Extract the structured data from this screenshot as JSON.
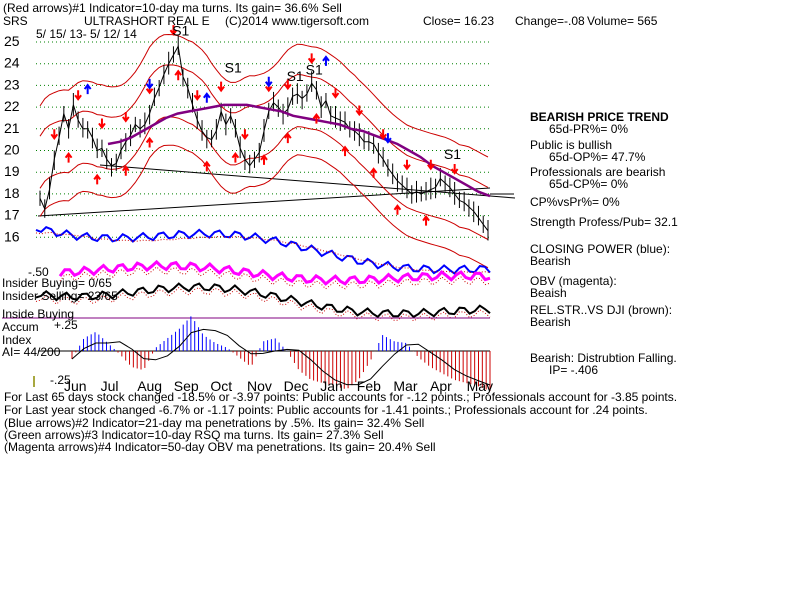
{
  "header": {
    "line1": "(Red arrows)#1 Indicator=10-day ma turns. Its gain= 36.6% Sell",
    "ticker": "SRS",
    "name": "ULTRASHORT REAL E",
    "copyright": "(C)2014 www.tigersoft.com",
    "close": "Close=  16.23",
    "change": "Change=-.08",
    "volume": "Volume= 565",
    "date_range": "5/ 15/ 13-  5/ 12/ 14"
  },
  "chart_data": {
    "type": "line",
    "ylim": [
      15.5,
      25.4
    ],
    "yticks": [
      "25",
      "24",
      "23",
      "22",
      "21",
      "20",
      "19",
      "18",
      "17",
      "16"
    ],
    "months": [
      "Jun",
      "Jul",
      "Aug",
      "Sep",
      "Oct",
      "Nov",
      "Dec",
      "Jan",
      "Feb",
      "Mar",
      "Apr",
      "May"
    ],
    "series": [
      {
        "values": [
          17.8,
          17.3,
          18.2,
          19.6,
          20.6,
          21.7,
          21.0,
          22.1,
          21.4,
          21.0,
          21.0,
          20.6,
          20.0,
          20.1,
          19.6,
          19.3,
          19.4,
          20.0,
          20.4,
          20.7,
          21.2,
          21.0,
          21.2,
          21.7,
          22.4,
          22.9,
          23.5,
          24.0,
          24.4,
          24.8,
          23.4,
          22.9,
          22.1,
          21.4,
          20.9,
          20.6,
          20.5,
          20.9,
          21.8,
          21.2,
          21.6,
          21.0,
          20.1,
          19.6,
          19.3,
          19.6,
          19.9,
          20.9,
          21.8,
          22.2,
          22.0,
          21.7,
          21.9,
          22.5,
          22.6,
          22.4,
          22.6,
          23.1,
          22.8,
          22.0,
          22.3,
          21.6,
          21.5,
          21.4,
          21.3,
          21.0,
          20.9,
          20.7,
          20.4,
          20.4,
          20.3,
          19.9,
          19.6,
          19.2,
          18.9,
          18.6,
          18.4,
          18.2,
          18.0,
          18.1,
          18.0,
          18.1,
          18.2,
          18.3,
          18.7,
          18.5,
          18.3,
          18.0,
          17.7,
          17.6,
          17.4,
          17.2,
          16.9,
          16.6,
          16.3
        ]
      },
      {
        "values": [
          20.3,
          20.4,
          20.6,
          20.9,
          21.2,
          21.5,
          21.7,
          21.8,
          21.9,
          22.0,
          22.1,
          22.1,
          22.1,
          22.0,
          21.9,
          21.8,
          21.6,
          21.5,
          21.4,
          21.3,
          21.2,
          21.0,
          20.9,
          20.7,
          20.5,
          20.3,
          20.0,
          19.7,
          19.3,
          19.0,
          18.7,
          18.4,
          18.1,
          17.9
        ]
      },
      {
        "values": [
          -0.05,
          0.08,
          0.12,
          0.05,
          -0.02,
          -0.1,
          -0.12,
          0.02,
          0.08,
          0.14,
          0.22,
          0.1,
          0.05,
          0.02,
          -0.04,
          -0.1,
          0.06,
          0.08,
          0.0,
          -0.12,
          -0.18,
          -0.2,
          -0.22,
          -0.24,
          -0.18,
          -0.06,
          0.1,
          0.06,
          0.05,
          -0.04,
          -0.1,
          -0.14,
          -0.18,
          -0.2,
          -0.22,
          -0.25
        ]
      }
    ]
  },
  "arrow_counts": {
    "red_down": 18,
    "red_up": 14,
    "blue": 6,
    "sell_signal": "S1"
  },
  "insider": {
    "buying": "Insider Buying= 0/65",
    "selling": "Insider Selling= 23/65",
    "buying_line": "Inside Buying",
    "accum": "Accum",
    "accum_val": "+.25",
    "index": "Index",
    "ai": "AI= 44/200",
    "neg": "-.25",
    "neg50": "-.50"
  },
  "sidebar": {
    "trend": "BEARISH PRICE TREND",
    "pr": "65d-PR%= 0%",
    "public": "Public is bullish",
    "op": "65d-OP%= 47.7%",
    "prof": "Professionals are bearish",
    "cp": "65d-CP%= 0%",
    "cpvspr": "CP%vsPr%=  0%",
    "strength": "Strength Profess/Pub= 32.1",
    "closing_power": "CLOSING POWER (blue):",
    "cp_state": "Bearish",
    "obv": "OBV (magenta):",
    "obv_state": "Beaish",
    "rel": "REL.STR..VS DJI (brown):",
    "rel_state": "Bearish",
    "dist": "Bearish: Distrubtion Falling.",
    "ip": "IP= -.406"
  },
  "footer": {
    "l1": "For Last 65 days stock changed -18.5% or -3.97 points:  Public accounts for -.12 points.;  Professionals account for -3.85 points.",
    "l2": "For Last year stock changed -6.7% or -1.17 points:  Public accounts for -1.41 points.;  Professionals account for  .24 points.",
    "l3": "(Blue arrows)#2 Indicator=21-day ma penetrations by .5%. Its gain= 32.4% Sell",
    "l4": "(Green arrows)#3 Indicator=10-day RSQ ma turns. Its gain= 27.3% Sell",
    "l5": "(Magenta arrows)#4 Indicator=50-day OBV ma penetrations. Its gain= 20.4% Sell"
  },
  "colors": {
    "grid": "#008000",
    "price": "#000000",
    "band": "#cc0000",
    "ma": "#800080",
    "closing_power": "#0000ff",
    "obv": "#ff00ff",
    "rel_str": "#000000",
    "accum_pos": "#0000ff",
    "accum_neg": "#cc0000",
    "arrow_red": "#ff0000",
    "arrow_blue": "#0000ff"
  }
}
